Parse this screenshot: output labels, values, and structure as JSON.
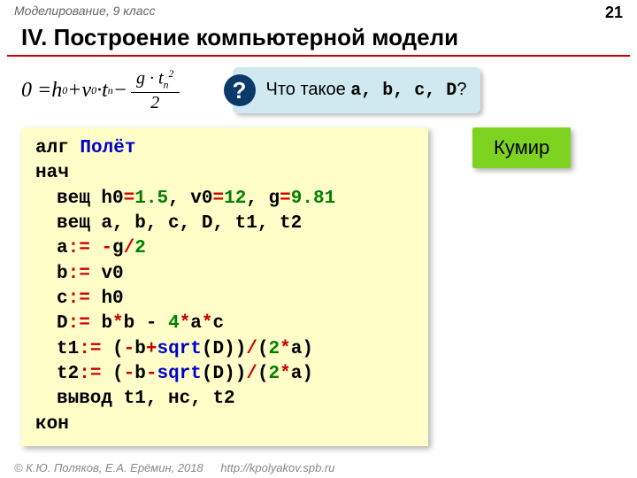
{
  "header": {
    "breadcrumb": "Моделирование, 9 класс",
    "page_number": "21"
  },
  "title": "IV. Построение компьютерной модели",
  "callout": {
    "icon": "?",
    "prefix": "Что такое ",
    "vars": "a, b, c, D",
    "suffix": "?"
  },
  "code": {
    "l1_kw": "алг",
    "l1_name": "Полёт",
    "l2": "нач",
    "l3_kw": "вещ",
    "l3_a": "h0",
    "l3_av": "1.5",
    "l3_b": "v0",
    "l3_bv": "12",
    "l3_c": "g",
    "l3_cv": "9.81",
    "l4_kw": "вещ",
    "l4_rest": "a, b, c, D, t1, t2",
    "l5_lhs": "a",
    "l5_op": ":=",
    "l5_neg": "-",
    "l5_g": "g",
    "l5_div": "/",
    "l5_two": "2",
    "l6_lhs": "b",
    "l6_op": ":=",
    "l6_rhs": "v0",
    "l7_lhs": "c",
    "l7_op": ":=",
    "l7_rhs": "h0",
    "l8_lhs": "D",
    "l8_op": ":=",
    "l8_b1": "b",
    "l8_mul1": "*",
    "l8_b2": "b",
    "l8_minus": " - ",
    "l8_four": "4",
    "l8_mul2": "*",
    "l8_a": "a",
    "l8_mul3": "*",
    "l8_c": "c",
    "l9_lhs": "t1",
    "l9_op": ":=",
    "l9_p1": "(",
    "l9_neg": "-",
    "l9_b": "b",
    "l9_plus": "+",
    "l9_sqrt": "sqrt",
    "l9_p2": "(D))",
    "l9_div": "/",
    "l9_p3": "(",
    "l9_two": "2",
    "l9_mul": "*",
    "l9_a": "a)",
    "l10_lhs": "t2",
    "l10_op": ":=",
    "l10_p1": "(",
    "l10_neg": "-",
    "l10_b": "b",
    "l10_minus": "-",
    "l10_sqrt": "sqrt",
    "l10_p2": "(D))",
    "l10_div": "/",
    "l10_p3": "(",
    "l10_two": "2",
    "l10_mul": "*",
    "l10_a": "a)",
    "l11_kw": "вывод",
    "l11_args": "t1, нс, t2",
    "l12": "кон"
  },
  "badge": "Кумир",
  "footer": {
    "copyright": "© К.Ю. Поляков, Е.А. Ерёмин, 2018",
    "url": "http://kpolyakov.spb.ru"
  }
}
